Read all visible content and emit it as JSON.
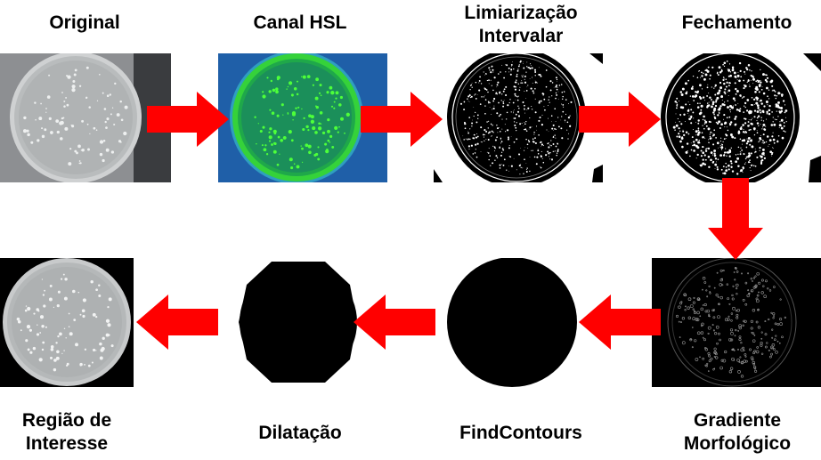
{
  "steps": [
    {
      "id": "original",
      "line1": "Original",
      "line2": ""
    },
    {
      "id": "canal_hsl",
      "line1": "Canal HSL",
      "line2": ""
    },
    {
      "id": "limiarizacao",
      "line1": "Limiarização",
      "line2": "Intervalar"
    },
    {
      "id": "fechamento",
      "line1": "Fechamento",
      "line2": ""
    },
    {
      "id": "gradiente",
      "line1": "Gradiente",
      "line2": "Morfológico"
    },
    {
      "id": "findcontours",
      "line1": "FindContours",
      "line2": ""
    },
    {
      "id": "dilatacao",
      "line1": "Dilatação",
      "line2": ""
    },
    {
      "id": "regiao",
      "line1": "Região de",
      "line2": "Interesse"
    }
  ],
  "colors": {
    "arrow": "#ff0000",
    "hsl_background": "#1f5fa8",
    "hsl_dish": "#35d23a",
    "dish_gray": "#b9bcbd",
    "mask": "#000000"
  }
}
